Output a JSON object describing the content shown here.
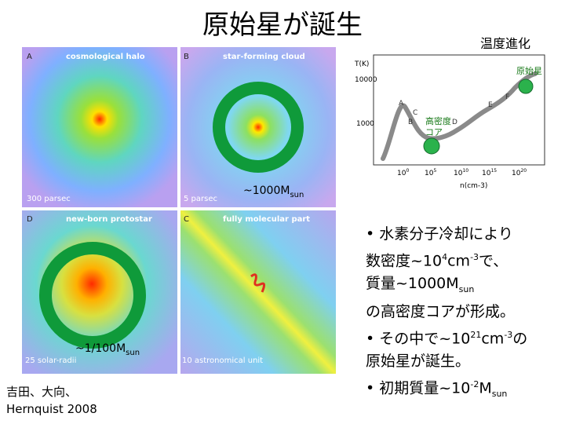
{
  "title": "原始星が誕生",
  "temperature_label": "温度進化",
  "panels": [
    {
      "letter": "A",
      "name": "cosmological halo",
      "scale": "300 parsec"
    },
    {
      "letter": "B",
      "name": "star-forming cloud",
      "scale": "5 parsec"
    },
    {
      "letter": "D",
      "name": "new-born protostar",
      "scale": "25 solar-radii"
    },
    {
      "letter": "C",
      "name": "fully molecular part",
      "scale": "10 astronomical unit"
    }
  ],
  "ring_labels": {
    "upper_prefix": "~1000M",
    "upper_sub": "sun",
    "lower_prefix": "~1/100M",
    "lower_sub": "sun"
  },
  "phase_diagram": {
    "ylabel": "T(K)",
    "xlabel": "n(cm-3)",
    "y_ticks": [
      "10000",
      "1000"
    ],
    "x_ticks": [
      {
        "base": "10",
        "exp": "0"
      },
      {
        "base": "10",
        "exp": "5"
      },
      {
        "base": "10",
        "exp": "10"
      },
      {
        "base": "10",
        "exp": "15"
      },
      {
        "base": "10",
        "exp": "20"
      }
    ],
    "curve_letters": [
      "A",
      "B",
      "C",
      "D",
      "E",
      "F"
    ],
    "annotation_protostar": "原始星",
    "annotation_core_1": "高密度",
    "annotation_core_2": "コア",
    "marker_color": "#2bb24c"
  },
  "bullets": {
    "l1": "• 水素分子冷却により",
    "l2a": "数密度~10",
    "l2sup": "4",
    "l2b": "cm",
    "l2sup2": "-3",
    "l2c": "で、",
    "l3a": "質量~1000M",
    "l3sub": "sun",
    "l4": "の高密度コアが形成。",
    "l5a": "• その中で~10",
    "l5sup": "21",
    "l5b": "cm",
    "l5sup2": "-3",
    "l5c": "の",
    "l6": "原始星が誕生。",
    "l7a": "• 初期質量~10",
    "l7sup": "-2",
    "l7b": "M",
    "l7sub": "sun"
  },
  "credit": {
    "line1": "吉田、大向、",
    "line2": "Hernquist 2008"
  }
}
